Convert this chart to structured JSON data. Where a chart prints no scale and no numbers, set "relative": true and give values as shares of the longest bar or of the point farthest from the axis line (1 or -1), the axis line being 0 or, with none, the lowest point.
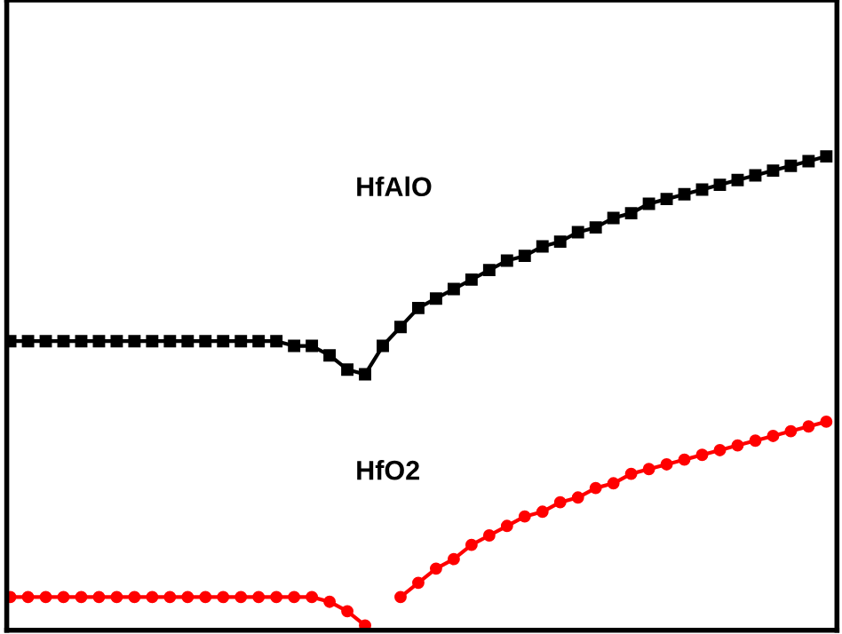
{
  "chart_data": {
    "type": "line",
    "relative": true,
    "categories": [
      null,
      null,
      null,
      null,
      null,
      null,
      null,
      null,
      null,
      null,
      null,
      null,
      null,
      null,
      null,
      null,
      null,
      null,
      null,
      null,
      null,
      null,
      null,
      null,
      null,
      null,
      null,
      null,
      null,
      null,
      null,
      null,
      null,
      null,
      null,
      null,
      null,
      null,
      null,
      null,
      null,
      null,
      null,
      null,
      null,
      null,
      null
    ],
    "series": [
      {
        "color": "#000000",
        "marker": "square",
        "values": [
          0.61,
          0.61,
          0.61,
          0.61,
          0.61,
          0.61,
          0.61,
          0.61,
          0.61,
          0.61,
          0.61,
          0.61,
          0.61,
          0.61,
          0.61,
          0.61,
          0.6,
          0.6,
          0.58,
          0.55,
          0.54,
          0.6,
          0.64,
          0.68,
          0.7,
          0.72,
          0.74,
          0.76,
          0.78,
          0.79,
          0.81,
          0.82,
          0.84,
          0.85,
          0.87,
          0.88,
          0.9,
          0.91,
          0.92,
          0.93,
          0.94,
          0.95,
          0.96,
          0.97,
          0.98,
          0.99,
          1.0
        ]
      },
      {
        "color": "#ff0000",
        "marker": "circle",
        "values": [
          0.07,
          0.07,
          0.07,
          0.07,
          0.07,
          0.07,
          0.07,
          0.07,
          0.07,
          0.07,
          0.07,
          0.07,
          0.07,
          0.07,
          0.07,
          0.07,
          0.07,
          0.07,
          0.06,
          0.04,
          0.01,
          null,
          0.07,
          0.1,
          0.13,
          0.15,
          0.18,
          0.2,
          0.22,
          0.24,
          0.25,
          0.27,
          0.28,
          0.3,
          0.31,
          0.33,
          0.34,
          0.35,
          0.36,
          0.37,
          0.38,
          0.39,
          0.4,
          0.41,
          0.42,
          0.43,
          0.44
        ]
      }
    ],
    "annotations": [
      "HfAlO",
      "HfO2"
    ]
  }
}
